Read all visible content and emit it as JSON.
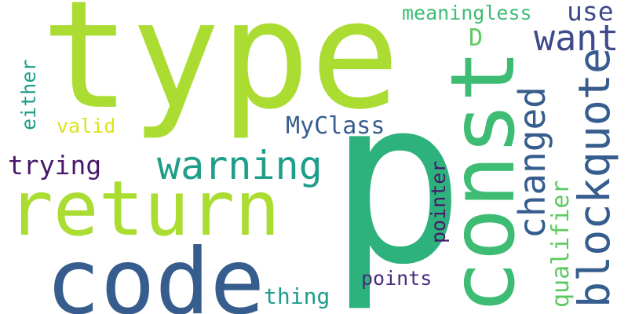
{
  "colors": {
    "background": "#ffffff",
    "lime": "#aadc32",
    "green": "#2db27d",
    "teal": "#1f9e89",
    "mint": "#3ebc74",
    "blue": "#365d8d",
    "slate": "#3e4a89",
    "purple": "#48186a",
    "indigo": "#472d7b",
    "yellow": "#dde318",
    "light_green": "#5ec962"
  },
  "words": {
    "type": "type",
    "p": "p",
    "const": "const",
    "return": "return",
    "code": "code",
    "warning": "warning",
    "want": "want",
    "changed": "changed",
    "blockquote": "blockquote",
    "meaningless": "meaningless",
    "use": "use",
    "D": "D",
    "MyClass": "MyClass",
    "trying": "trying",
    "valid": "valid",
    "either": "either",
    "pointer": "pointer",
    "qualifier": "qualifier",
    "points": "points",
    "thing": "thing"
  }
}
